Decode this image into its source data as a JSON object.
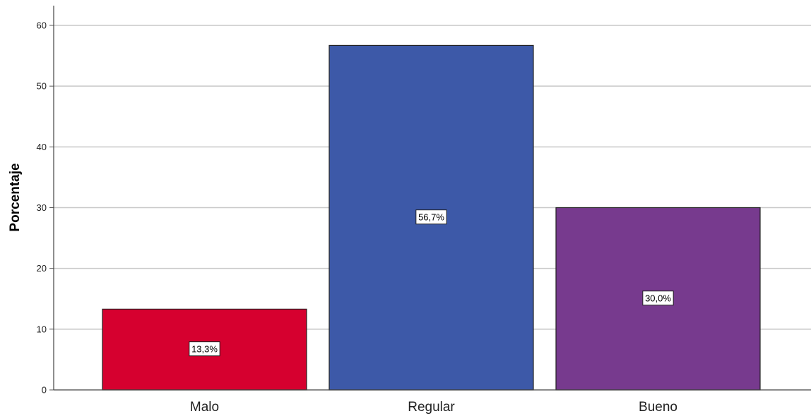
{
  "chart_data": {
    "type": "bar",
    "title": "",
    "xlabel": "",
    "ylabel": "Porcentaje",
    "ylim": [
      0,
      63
    ],
    "yticks": [
      0,
      10,
      20,
      30,
      40,
      50,
      60
    ],
    "categories": [
      "Malo",
      "Regular",
      "Bueno"
    ],
    "values": [
      13.3,
      56.7,
      30.0
    ],
    "data_labels": [
      "13,3%",
      "56,7%",
      "30,0%"
    ],
    "colors": [
      "#d6002f",
      "#3d59a8",
      "#773a8e"
    ],
    "grid": "horizontal",
    "legend": "none"
  }
}
